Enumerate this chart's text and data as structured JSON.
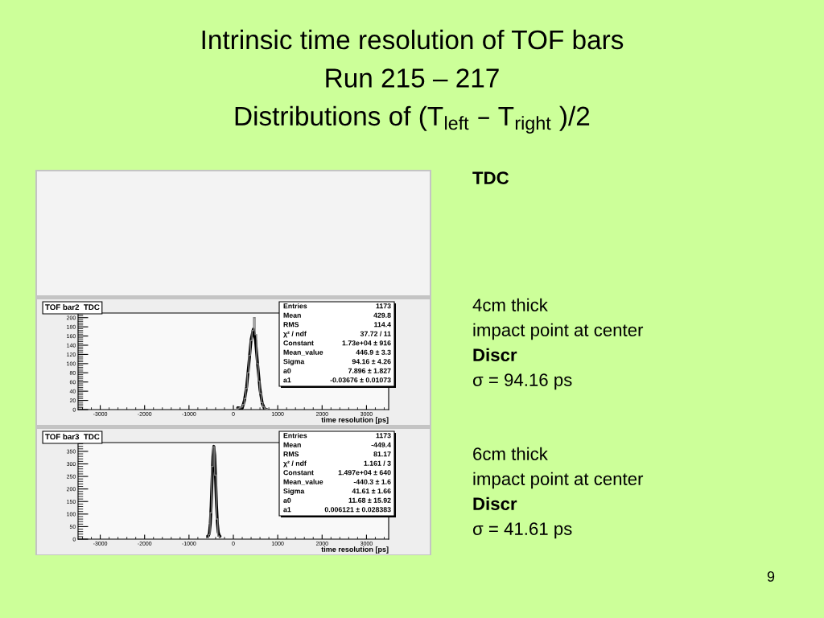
{
  "chart_data": [
    {
      "type": "other",
      "title": "Intrinsic time resolution of TOF bars\nRun 215 – 217\nDistributions of (T$_{left}$ – T$_{right}$ )/2",
      "annotations": [
        "TDC",
        "4cm thick",
        "impact point at center",
        "Discr",
        "σ = 94.16 ps",
        "6cm thick",
        "impact point at center",
        "Discr",
        "σ = 41.61 ps",
        "9"
      ]
    },
    {
      "type": "histogram",
      "title": "TOF bar2  TDC",
      "xlabel": "time resolution [ps]",
      "xlim": [
        -3500,
        3500
      ],
      "xticks": [
        -3000,
        -2000,
        -1000,
        0,
        1000,
        2000,
        3000
      ],
      "ylim": [
        0,
        210
      ],
      "yticks": [
        0,
        20,
        40,
        60,
        80,
        100,
        120,
        140,
        160,
        180,
        200
      ],
      "series": [
        {
          "type": "line",
          "color": "#000000",
          "x": [
            100,
            150,
            200,
            250,
            300,
            350,
            400,
            450,
            500,
            550,
            600,
            650,
            700,
            750
          ],
          "values": [
            4,
            3,
            3,
            20,
            50,
            100,
            152,
            175,
            150,
            95,
            44,
            14,
            2,
            0
          ]
        },
        {
          "type": "histogram",
          "color": "#808080",
          "bins": [
            70,
            105,
            140,
            175,
            210,
            245,
            280,
            315,
            350,
            385,
            420,
            455,
            490,
            525,
            560,
            595,
            630,
            665,
            700,
            735,
            770
          ],
          "values": [
            1,
            3,
            4,
            6,
            11,
            24,
            46,
            80,
            118,
            150,
            172,
            200,
            163,
            100,
            62,
            35,
            15,
            6,
            2,
            1
          ]
        }
      ],
      "annotations": [
        "Entries",
        "1173",
        "Mean",
        "429.8",
        "RMS",
        "114.4",
        "χ² / ndf",
        "37.72 / 11",
        "Constant",
        "1.73e+04 ± 916",
        "Mean_value",
        "446.9 ± 3.3",
        "Sigma",
        "94.16 ± 4.26",
        "a0",
        "7.896 ± 1.827",
        "a1",
        "-0.03676 ± 0.01073"
      ]
    },
    {
      "type": "histogram",
      "title": "TOF bar3  TDC",
      "xlabel": "time resolution [ps]",
      "xlim": [
        -3500,
        3500
      ],
      "xticks": [
        -3000,
        -2000,
        -1000,
        0,
        1000,
        2000,
        3000
      ],
      "ylim": [
        0,
        385
      ],
      "yticks": [
        0,
        50,
        100,
        150,
        200,
        250,
        300,
        350
      ],
      "series": [
        {
          "type": "line",
          "color": "#000000",
          "x": [
            -580,
            -560,
            -540,
            -520,
            -500,
            -480,
            -460,
            -440,
            -420,
            -400,
            -380,
            -360,
            -340,
            -320,
            -300
          ],
          "values": [
            12,
            14,
            25,
            62,
            133,
            235,
            330,
            370,
            335,
            238,
            136,
            64,
            27,
            15,
            12
          ]
        },
        {
          "type": "histogram",
          "color": "#808080",
          "bins": [
            -630,
            -595,
            -560,
            -525,
            -490,
            -455,
            -420,
            -385,
            -350,
            -315,
            -280,
            -245
          ],
          "values": [
            1,
            2,
            19,
            105,
            290,
            368,
            255,
            80,
            12,
            2,
            1
          ]
        }
      ],
      "annotations": [
        "Entries",
        "1173",
        "Mean",
        "-449.4",
        "RMS",
        "81.17",
        "χ² / ndf",
        "1.161 / 3",
        "Constant",
        "1.497e+04 ± 640",
        "Mean_value",
        "-440.3 ± 1.6",
        "Sigma",
        "41.61 ± 1.66",
        "a0",
        "11.68 ± 15.92",
        "a1",
        "0.006121 ± 0.028383"
      ]
    }
  ]
}
